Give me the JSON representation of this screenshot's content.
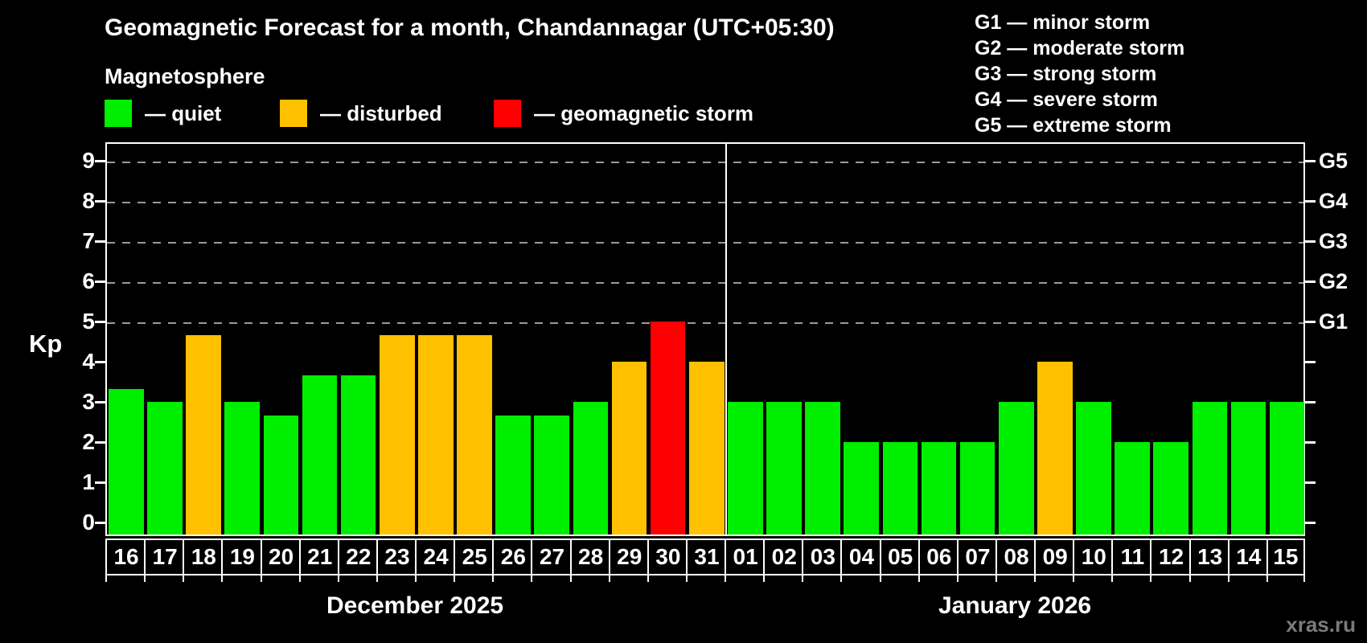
{
  "title": "Geomagnetic Forecast for a month, Chandannagar (UTC+05:30)",
  "subtitle": "Magnetosphere",
  "colors": {
    "quiet": "#00ee00",
    "disturbed": "#ffc000",
    "storm": "#ff0000",
    "background": "#000000",
    "axis": "#ffffff",
    "grid": "#9a9a9a",
    "watermark": "#7b7b7b"
  },
  "legend": {
    "items": [
      {
        "key": "quiet",
        "label": "— quiet"
      },
      {
        "key": "disturbed",
        "label": "— disturbed"
      },
      {
        "key": "storm",
        "label": "— geomagnetic storm"
      }
    ]
  },
  "storm_scale": {
    "lines": [
      "G1 — minor storm",
      "G2 — moderate storm",
      "G3 — strong storm",
      "G4 — severe storm",
      "G5 — extreme storm"
    ]
  },
  "watermark": "xras.ru",
  "chart_data": {
    "type": "bar",
    "ylabel": "Kp",
    "ylim": [
      0,
      9.5
    ],
    "yticks": [
      0,
      1,
      2,
      3,
      4,
      5,
      6,
      7,
      8,
      9
    ],
    "gridlines_at_kp": [
      5,
      6,
      7,
      8,
      9
    ],
    "right_axis_labels": [
      {
        "label": "G1",
        "kp": 5
      },
      {
        "label": "G2",
        "kp": 6
      },
      {
        "label": "G3",
        "kp": 7
      },
      {
        "label": "G4",
        "kp": 8
      },
      {
        "label": "G5",
        "kp": 9
      }
    ],
    "months": [
      {
        "label": "December 2025",
        "days": [
          "16",
          "17",
          "18",
          "19",
          "20",
          "21",
          "22",
          "23",
          "24",
          "25",
          "26",
          "27",
          "28",
          "29",
          "30",
          "31"
        ],
        "values": [
          3.33,
          3,
          4.67,
          3,
          2.67,
          3.67,
          3.67,
          4.67,
          4.67,
          4.67,
          2.67,
          2.67,
          3,
          4,
          5,
          4
        ],
        "status": [
          "quiet",
          "quiet",
          "disturbed",
          "quiet",
          "quiet",
          "quiet",
          "quiet",
          "disturbed",
          "disturbed",
          "disturbed",
          "quiet",
          "quiet",
          "quiet",
          "disturbed",
          "storm",
          "disturbed"
        ]
      },
      {
        "label": "January 2026",
        "days": [
          "01",
          "02",
          "03",
          "04",
          "05",
          "06",
          "07",
          "08",
          "09",
          "10",
          "11",
          "12",
          "13",
          "14",
          "15"
        ],
        "values": [
          3,
          3,
          3,
          2,
          2,
          2,
          2,
          3,
          4,
          3,
          2,
          2,
          3,
          3,
          3
        ],
        "status": [
          "quiet",
          "quiet",
          "quiet",
          "quiet",
          "quiet",
          "quiet",
          "quiet",
          "quiet",
          "disturbed",
          "quiet",
          "quiet",
          "quiet",
          "quiet",
          "quiet",
          "quiet"
        ]
      }
    ]
  }
}
